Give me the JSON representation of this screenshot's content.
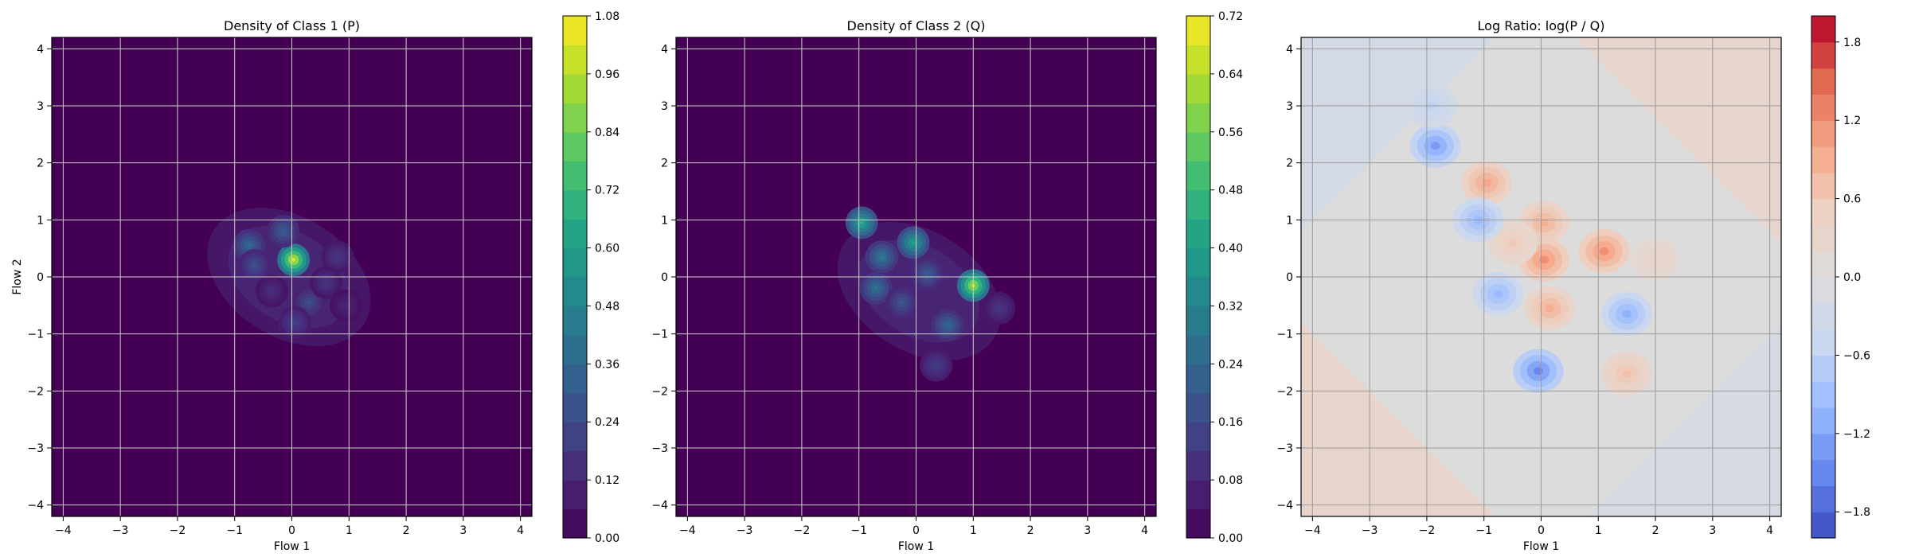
{
  "chart_data": [
    {
      "type": "heatmap",
      "title": "Density of Class 1 (P)",
      "xlabel": "Flow 1",
      "ylabel": "Flow 2",
      "xlim": [
        -4.2,
        4.2
      ],
      "ylim": [
        -4.2,
        4.2
      ],
      "xticks": [
        -4,
        -3,
        -2,
        -1,
        0,
        1,
        2,
        3,
        4
      ],
      "yticks": [
        -4,
        -3,
        -2,
        -1,
        0,
        1,
        2,
        3,
        4
      ],
      "grid": true,
      "colormap": "viridis",
      "colorbar": {
        "min": 0.0,
        "max": 1.08,
        "ticks": [
          "0.00",
          "0.12",
          "0.24",
          "0.36",
          "0.48",
          "0.60",
          "0.72",
          "0.84",
          "0.96",
          "1.08"
        ]
      },
      "peaks": [
        {
          "x": 0.03,
          "y": 0.3,
          "value": 1.05
        },
        {
          "x": -0.75,
          "y": 0.55,
          "value": 0.38
        },
        {
          "x": -0.15,
          "y": 0.8,
          "value": 0.33
        },
        {
          "x": -0.65,
          "y": 0.2,
          "value": 0.28
        },
        {
          "x": 0.3,
          "y": -0.45,
          "value": 0.27
        },
        {
          "x": 0.05,
          "y": -0.8,
          "value": 0.22
        },
        {
          "x": 0.8,
          "y": 0.35,
          "value": 0.18
        },
        {
          "x": 0.6,
          "y": -0.1,
          "value": 0.17
        },
        {
          "x": -0.35,
          "y": -0.25,
          "value": 0.15
        },
        {
          "x": 0.95,
          "y": -0.5,
          "value": 0.12
        }
      ]
    },
    {
      "type": "heatmap",
      "title": "Density of Class 2 (Q)",
      "xlabel": "Flow 1",
      "ylabel": "",
      "xlim": [
        -4.2,
        4.2
      ],
      "ylim": [
        -4.2,
        4.2
      ],
      "xticks": [
        -4,
        -3,
        -2,
        -1,
        0,
        1,
        2,
        3,
        4
      ],
      "yticks": [
        -4,
        -3,
        -2,
        -1,
        0,
        1,
        2,
        3,
        4
      ],
      "grid": true,
      "colormap": "viridis",
      "colorbar": {
        "min": 0.0,
        "max": 0.72,
        "ticks": [
          "0.00",
          "0.08",
          "0.16",
          "0.24",
          "0.32",
          "0.40",
          "0.48",
          "0.56",
          "0.64",
          "0.72"
        ]
      },
      "peaks": [
        {
          "x": 1.0,
          "y": -0.15,
          "value": 0.66
        },
        {
          "x": -0.95,
          "y": 0.95,
          "value": 0.45
        },
        {
          "x": -0.05,
          "y": 0.6,
          "value": 0.42
        },
        {
          "x": -0.6,
          "y": 0.35,
          "value": 0.3
        },
        {
          "x": -0.7,
          "y": -0.2,
          "value": 0.28
        },
        {
          "x": 0.55,
          "y": -0.85,
          "value": 0.25
        },
        {
          "x": 0.2,
          "y": 0.05,
          "value": 0.22
        },
        {
          "x": -0.25,
          "y": -0.45,
          "value": 0.2
        },
        {
          "x": 0.35,
          "y": -1.55,
          "value": 0.14
        },
        {
          "x": 1.45,
          "y": -0.55,
          "value": 0.12
        }
      ]
    },
    {
      "type": "heatmap",
      "title": "Log Ratio: log(P / Q)",
      "xlabel": "Flow 1",
      "ylabel": "",
      "xlim": [
        -4.2,
        4.2
      ],
      "ylim": [
        -4.2,
        4.2
      ],
      "xticks": [
        -4,
        -3,
        -2,
        -1,
        0,
        1,
        2,
        3,
        4
      ],
      "yticks": [
        -4,
        -3,
        -2,
        -1,
        0,
        1,
        2,
        3,
        4
      ],
      "grid": true,
      "colormap": "coolwarm",
      "colorbar": {
        "min": -2.0,
        "max": 2.0,
        "ticks": [
          "−1.8",
          "−1.2",
          "−0.6",
          "0.0",
          "0.6",
          "1.2",
          "1.8"
        ],
        "tick_values": [
          -1.8,
          -1.2,
          -0.6,
          0.0,
          0.6,
          1.2,
          1.8
        ]
      },
      "regions": [
        {
          "x": 1.1,
          "y": 0.45,
          "value": 1.2
        },
        {
          "x": -0.95,
          "y": 1.65,
          "value": 1.0
        },
        {
          "x": 0.05,
          "y": 0.95,
          "value": 0.9
        },
        {
          "x": 0.05,
          "y": 0.3,
          "value": 1.2
        },
        {
          "x": 0.15,
          "y": -0.55,
          "value": 0.9
        },
        {
          "x": -0.5,
          "y": 0.6,
          "value": 0.6
        },
        {
          "x": 1.5,
          "y": -1.7,
          "value": 0.7
        },
        {
          "x": -1.85,
          "y": 2.3,
          "value": -1.3
        },
        {
          "x": -1.1,
          "y": 1.0,
          "value": -1.0
        },
        {
          "x": -0.75,
          "y": -0.3,
          "value": -1.0
        },
        {
          "x": -0.05,
          "y": -1.65,
          "value": -1.5
        },
        {
          "x": 1.5,
          "y": -0.65,
          "value": -1.1
        },
        {
          "x": -1.9,
          "y": 3.0,
          "value": -0.6
        },
        {
          "x": 2.0,
          "y": 0.3,
          "value": 0.4
        }
      ]
    }
  ]
}
